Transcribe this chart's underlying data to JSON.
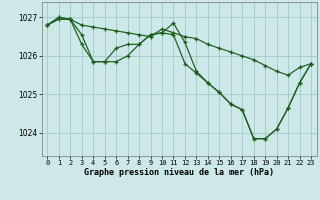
{
  "background_color": "#cce8e8",
  "grid_color": "#aacccc",
  "line_color": "#1a5c1a",
  "xlabel": "Graphe pression niveau de la mer (hPa)",
  "ylim": [
    1023.4,
    1027.4
  ],
  "xlim": [
    -0.5,
    23.5
  ],
  "yticks": [
    1024,
    1025,
    1026,
    1027
  ],
  "xticks": [
    0,
    1,
    2,
    3,
    4,
    5,
    6,
    7,
    8,
    9,
    10,
    11,
    12,
    13,
    14,
    15,
    16,
    17,
    18,
    19,
    20,
    21,
    22,
    23
  ],
  "series": [
    [
      1026.8,
      1027.0,
      1026.95,
      1026.8,
      1026.75,
      1026.7,
      1026.65,
      1026.6,
      1026.55,
      1026.5,
      1026.7,
      1026.6,
      1026.5,
      1026.45,
      1026.3,
      1026.2,
      1026.1,
      1026.0,
      1025.9,
      1025.75,
      1025.6,
      1025.5,
      1025.7,
      1025.8
    ],
    [
      1026.8,
      1027.0,
      1026.95,
      1026.55,
      1025.85,
      1025.85,
      1026.2,
      1026.3,
      1026.3,
      1026.55,
      1026.6,
      1026.85,
      1026.35,
      1025.6,
      1025.3,
      1025.05,
      1024.75,
      1024.6,
      1023.85,
      1023.85,
      1024.1,
      1024.65,
      1025.3,
      1025.8
    ],
    [
      1026.8,
      1026.95,
      1026.95,
      1026.3,
      1025.85,
      1025.85,
      1025.85,
      1026.0,
      1026.3,
      1026.55,
      1026.6,
      1026.55,
      1025.8,
      1025.55,
      1025.3,
      1025.05,
      1024.75,
      1024.6,
      1023.85,
      1023.85,
      1024.1,
      1024.65,
      1025.3,
      1025.8
    ]
  ]
}
